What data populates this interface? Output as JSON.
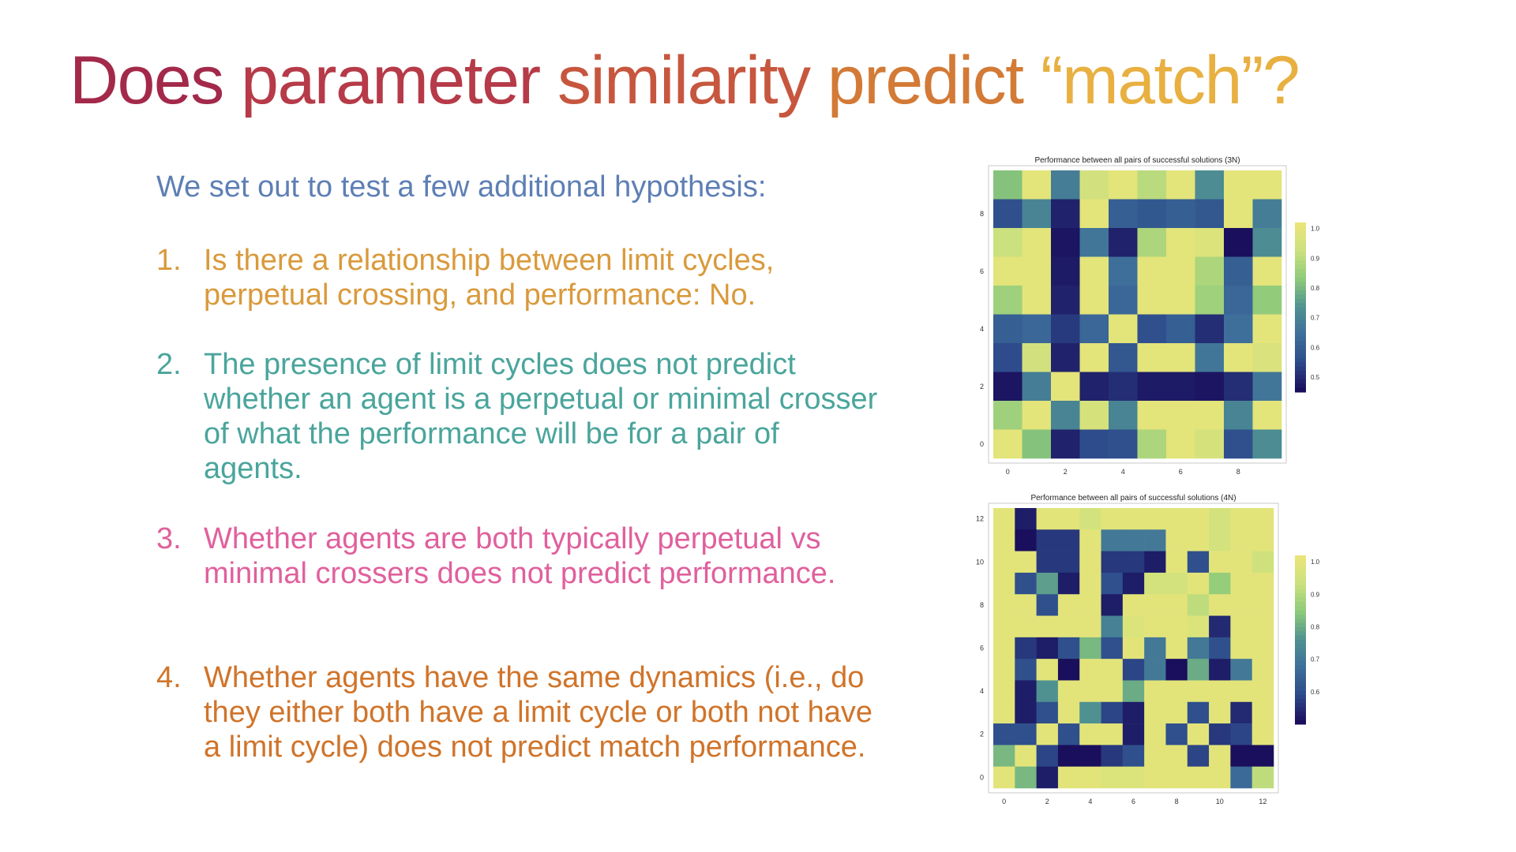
{
  "title": {
    "words": [
      {
        "text": "Does",
        "color": "#a3294a"
      },
      {
        "text": "parameter",
        "color": "#b63a48"
      },
      {
        "text": "similarity",
        "color": "#c7563e"
      },
      {
        "text": "predict",
        "color": "#d37a36"
      },
      {
        "text": "“match”?",
        "color": "#e8b041"
      }
    ]
  },
  "intro": "We set out to test a few additional  hypothesis:",
  "hypotheses": [
    {
      "num": "1.",
      "text": "Is there a relationship between limit cycles, perpetual crossing, and performance: No."
    },
    {
      "num": "2.",
      "text": "The presence of limit cycles does not predict whether an agent is a perpetual or minimal crosser of what the performance will be for a pair of agents."
    },
    {
      "num": "3.",
      "text": "Whether agents are both typically perpetual vs minimal crossers does not predict performance."
    },
    {
      "num": "4.",
      "text": "Whether agents have the same dynamics (i.e., do they either both have a limit cycle or both not have a limit cycle) does not predict match performance."
    }
  ],
  "colormap": [
    "#1a0f5c",
    "#2d4a8a",
    "#3d6f9a",
    "#4f9191",
    "#8bc97a",
    "#c9e07e",
    "#eae579"
  ],
  "chart_data": [
    {
      "type": "heatmap",
      "title": "Performance between all pairs of successful solutions (3N)",
      "x_ticks": [
        "0",
        "2",
        "4",
        "6",
        "8"
      ],
      "y_ticks": [
        "0",
        "2",
        "4",
        "6",
        "8"
      ],
      "colorbar_ticks": [
        "1.0",
        "0.9",
        "0.8",
        "0.7",
        "0.6",
        "0.5"
      ],
      "vmin": 0.45,
      "vmax": 1.02,
      "rows_top_to_bottom": [
        [
          0.82,
          1.0,
          0.68,
          0.95,
          1.0,
          0.9,
          1.0,
          0.72,
          1.0,
          1.0
        ],
        [
          0.56,
          0.7,
          0.48,
          1.0,
          0.6,
          0.58,
          0.6,
          0.58,
          1.0,
          0.68
        ],
        [
          0.93,
          1.0,
          0.46,
          0.66,
          0.48,
          0.88,
          1.0,
          0.98,
          0.45,
          0.72
        ],
        [
          1.0,
          1.0,
          0.47,
          1.0,
          0.64,
          1.0,
          1.0,
          0.88,
          0.6,
          1.0
        ],
        [
          0.86,
          1.0,
          0.48,
          1.0,
          0.62,
          1.0,
          1.0,
          0.86,
          0.62,
          0.84
        ],
        [
          0.6,
          0.62,
          0.52,
          0.62,
          1.0,
          0.56,
          0.6,
          0.5,
          0.64,
          1.0
        ],
        [
          0.55,
          0.95,
          0.48,
          1.0,
          0.58,
          1.0,
          1.0,
          0.66,
          1.0,
          0.97
        ],
        [
          0.46,
          0.68,
          1.0,
          0.48,
          0.5,
          0.47,
          0.47,
          0.46,
          0.5,
          0.66
        ],
        [
          0.86,
          1.0,
          0.7,
          0.96,
          0.7,
          1.0,
          1.0,
          1.0,
          0.7,
          1.0
        ],
        [
          1.0,
          0.82,
          0.48,
          0.55,
          0.56,
          0.88,
          1.0,
          0.96,
          0.56,
          0.72
        ]
      ]
    },
    {
      "type": "heatmap",
      "title": "Performance between all pairs of successful solutions (4N)",
      "x_ticks": [
        "0",
        "2",
        "4",
        "6",
        "8",
        "10",
        "12"
      ],
      "y_ticks": [
        "0",
        "2",
        "4",
        "6",
        "8",
        "10",
        "12"
      ],
      "colorbar_ticks": [
        "1.0",
        "0.9",
        "0.8",
        "0.7",
        "0.6"
      ],
      "vmin": 0.5,
      "vmax": 1.02,
      "rows_top_to_bottom": [
        [
          1.0,
          0.52,
          1.0,
          1.0,
          0.96,
          1.0,
          1.0,
          1.0,
          1.0,
          1.0,
          0.96,
          1.0,
          1.0
        ],
        [
          1.0,
          0.5,
          0.56,
          0.56,
          1.0,
          0.7,
          0.7,
          0.7,
          1.0,
          1.0,
          0.96,
          1.0,
          1.0
        ],
        [
          1.0,
          1.0,
          0.56,
          0.56,
          1.0,
          0.56,
          0.56,
          0.52,
          1.0,
          0.6,
          1.0,
          1.0,
          0.95
        ],
        [
          1.0,
          0.6,
          0.78,
          0.52,
          1.0,
          0.6,
          0.52,
          0.96,
          0.96,
          1.0,
          0.86,
          1.0,
          1.0
        ],
        [
          1.0,
          1.0,
          0.6,
          1.0,
          1.0,
          0.52,
          1.0,
          1.0,
          1.0,
          0.92,
          1.0,
          1.0,
          1.0
        ],
        [
          1.0,
          1.0,
          1.0,
          1.0,
          1.0,
          0.72,
          0.98,
          1.0,
          1.0,
          0.98,
          0.54,
          1.0,
          1.0
        ],
        [
          1.0,
          0.56,
          0.52,
          0.6,
          0.82,
          0.6,
          1.0,
          0.7,
          1.0,
          0.7,
          0.6,
          1.0,
          1.0
        ],
        [
          1.0,
          0.6,
          1.0,
          0.5,
          1.0,
          1.0,
          0.58,
          0.7,
          0.5,
          0.8,
          0.52,
          0.7,
          1.0
        ],
        [
          1.0,
          0.52,
          0.76,
          1.0,
          1.0,
          1.0,
          0.8,
          1.0,
          1.0,
          1.0,
          1.0,
          1.0,
          1.0
        ],
        [
          1.0,
          0.52,
          0.6,
          1.0,
          0.76,
          0.58,
          0.52,
          1.0,
          1.0,
          0.6,
          1.0,
          0.54,
          1.0
        ],
        [
          0.6,
          0.6,
          1.0,
          0.6,
          1.0,
          1.0,
          0.52,
          1.0,
          0.6,
          1.0,
          0.56,
          0.58,
          1.0
        ],
        [
          0.82,
          1.0,
          0.58,
          0.5,
          0.5,
          0.56,
          0.6,
          1.0,
          1.0,
          0.58,
          1.0,
          0.5,
          0.5
        ],
        [
          1.0,
          0.82,
          0.52,
          1.0,
          1.0,
          0.98,
          0.98,
          1.0,
          1.0,
          1.0,
          1.0,
          0.66,
          0.92
        ]
      ]
    }
  ]
}
